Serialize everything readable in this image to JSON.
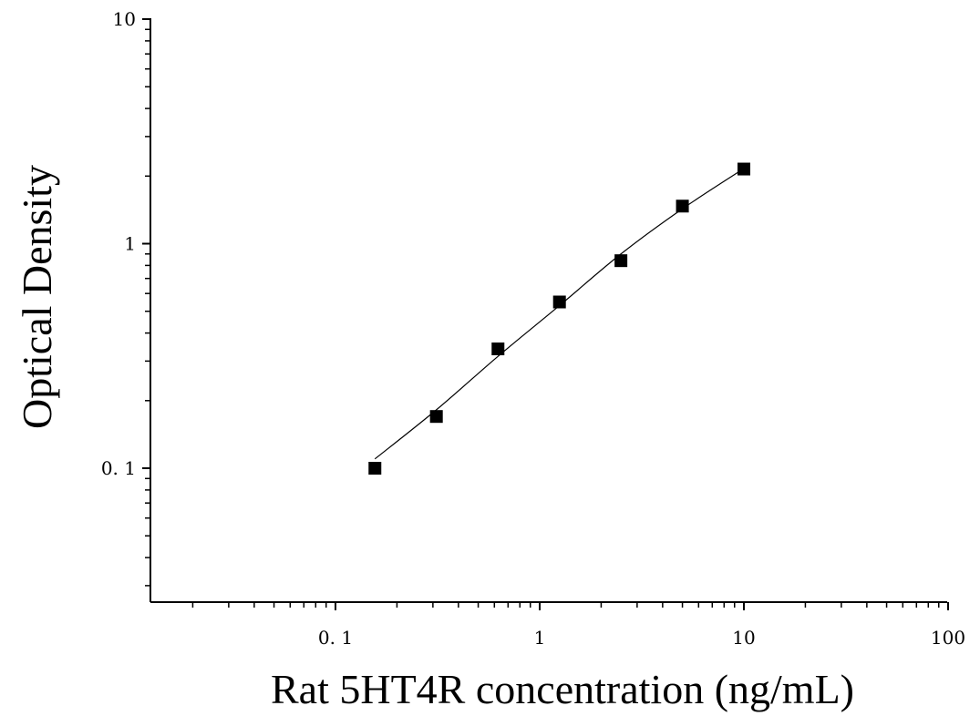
{
  "chart_data": {
    "type": "scatter",
    "title": "",
    "xlabel": "Rat 5HT4R concentration (ng/mL)",
    "ylabel": "Optical Density",
    "x_scale": "log",
    "y_scale": "log",
    "xlim": [
      0.012,
      100
    ],
    "ylim": [
      0.025,
      10
    ],
    "x_ticks": [
      {
        "value": 0.1,
        "label": "0. 1"
      },
      {
        "value": 1,
        "label": "1"
      },
      {
        "value": 10,
        "label": "10"
      },
      {
        "value": 100,
        "label": "100"
      }
    ],
    "y_ticks": [
      {
        "value": 0.1,
        "label": "0. 1"
      },
      {
        "value": 1,
        "label": "1"
      },
      {
        "value": 10,
        "label": "10"
      }
    ],
    "grid": false,
    "legend": "none",
    "series": [
      {
        "marker": "square",
        "color": "#000000",
        "points": [
          {
            "x": 0.156,
            "y": 0.1
          },
          {
            "x": 0.312,
            "y": 0.17
          },
          {
            "x": 0.625,
            "y": 0.34
          },
          {
            "x": 1.25,
            "y": 0.55
          },
          {
            "x": 2.5,
            "y": 0.84
          },
          {
            "x": 5,
            "y": 1.47
          },
          {
            "x": 10,
            "y": 2.15
          }
        ]
      }
    ],
    "fit_curve": {
      "color": "#000000",
      "points": [
        {
          "x": 0.156,
          "y": 0.11
        },
        {
          "x": 0.312,
          "y": 0.182
        },
        {
          "x": 0.625,
          "y": 0.315
        },
        {
          "x": 1.25,
          "y": 0.53
        },
        {
          "x": 2.5,
          "y": 0.9
        },
        {
          "x": 5,
          "y": 1.43
        },
        {
          "x": 10,
          "y": 2.16
        }
      ]
    }
  }
}
